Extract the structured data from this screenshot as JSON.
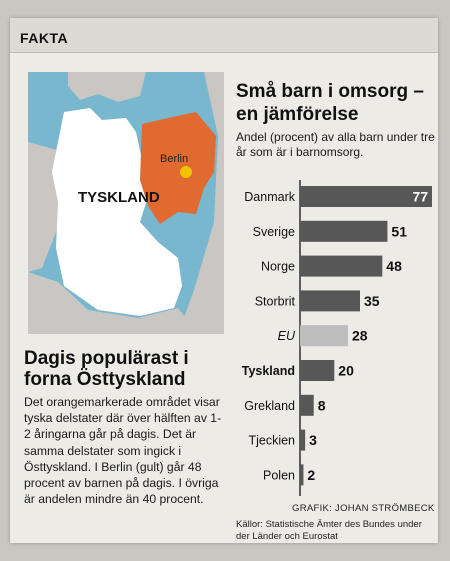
{
  "section_label": "FAKTA",
  "map": {
    "city_label": "Berlin",
    "country_label": "TYSKLAND",
    "colors": {
      "sea": "#79b7cf",
      "land": "#ffffff",
      "neighbors": "#c9c6c3",
      "east_states": "#e06a2f",
      "berlin": "#f2c100"
    }
  },
  "article": {
    "headline": "Dagis populärast i forna Östtyskland",
    "body": "Det orangemarkerade området visar tyska delstater där över hälften av 1-2 åringarna går på dagis. Det är samma delstater som ingick i Östtyskland. I Berlin (gult) går 48 procent av barnen på dagis. I övriga är andelen mindre än 40 procent."
  },
  "chart_data": {
    "type": "bar",
    "orientation": "horizontal",
    "title": "Små barn i omsorg – en jämförelse",
    "subtitle": "Andel (procent) av alla barn under tre år som är i barnomsorg.",
    "categories": [
      "Danmark",
      "Sverige",
      "Norge",
      "Storbrit",
      "EU",
      "Tyskland",
      "Grekland",
      "Tjeckien",
      "Polen"
    ],
    "values": [
      77,
      51,
      48,
      35,
      28,
      20,
      8,
      3,
      2
    ],
    "highlight": [
      "EU",
      "Tyskland"
    ],
    "colors": {
      "bar": "#575757",
      "eu_bar": "#bdbdbd",
      "axis": "#333333"
    }
  },
  "credit": "GRAFIK: JOHAN STRÖMBECK",
  "source": "Källor: Statistische Ämter des Bundes under der Länder och Eurostat"
}
